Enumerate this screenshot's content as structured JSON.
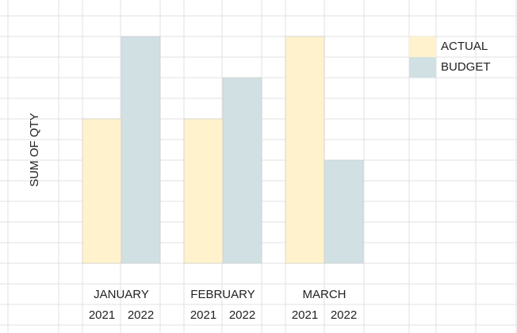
{
  "chart_data": {
    "type": "bar",
    "y_label": "SUM OF QTY",
    "categories": [
      "JANUARY",
      "FEBRUARY",
      "MARCH"
    ],
    "sub_categories": [
      "2021",
      "2022"
    ],
    "series": [
      {
        "name": "ACTUAL",
        "color": "#fff2cc",
        "values": [
          7,
          7,
          11
        ]
      },
      {
        "name": "BUDGET",
        "color": "#d0e0e3",
        "values": [
          11,
          9,
          5
        ]
      }
    ],
    "ylim": [
      0,
      11
    ]
  }
}
